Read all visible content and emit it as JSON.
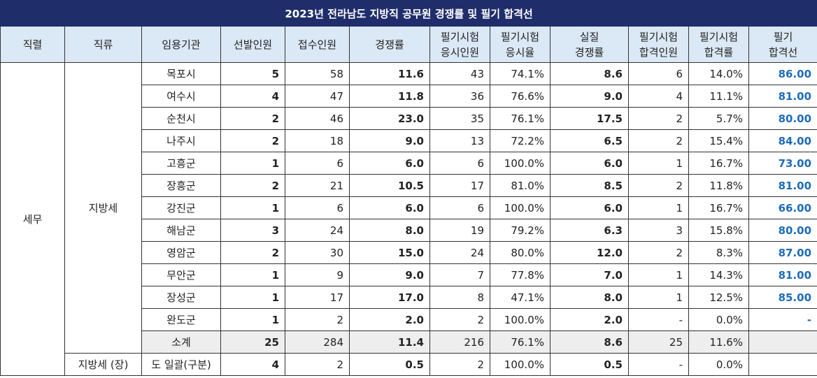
{
  "title": "2023년 전라남도 지방직 공무원 경쟁률 및 필기 합격선",
  "headers": {
    "position": "직렬",
    "category": "직류",
    "agency": "임용기관",
    "quota": "선발인원",
    "applicants": "접수인원",
    "ratio": "경쟁률",
    "exam_takers_l1": "필기시험",
    "exam_takers_l2": "응시인원",
    "exam_rate_l1": "필기시험",
    "exam_rate_l2": "응시율",
    "real_ratio_l1": "실질",
    "real_ratio_l2": "경쟁률",
    "passed_l1": "필기시험",
    "passed_l2": "합격인원",
    "pass_rate_l1": "필기시험",
    "pass_rate_l2": "합격률",
    "cutoff_l1": "필기",
    "cutoff_l2": "합격선"
  },
  "group": {
    "position": "세무",
    "category": "지방세",
    "category2": "지방세 (장)"
  },
  "rows": [
    {
      "agency": "목포시",
      "quota": "5",
      "applicants": "58",
      "ratio": "11.6",
      "takers": "43",
      "exam_rate": "74.1%",
      "real_ratio": "8.6",
      "passed": "6",
      "pass_rate": "14.0%",
      "cutoff": "86.00"
    },
    {
      "agency": "여수시",
      "quota": "4",
      "applicants": "47",
      "ratio": "11.8",
      "takers": "36",
      "exam_rate": "76.6%",
      "real_ratio": "9.0",
      "passed": "4",
      "pass_rate": "11.1%",
      "cutoff": "81.00"
    },
    {
      "agency": "순천시",
      "quota": "2",
      "applicants": "46",
      "ratio": "23.0",
      "takers": "35",
      "exam_rate": "76.1%",
      "real_ratio": "17.5",
      "passed": "2",
      "pass_rate": "5.7%",
      "cutoff": "80.00"
    },
    {
      "agency": "나주시",
      "quota": "2",
      "applicants": "18",
      "ratio": "9.0",
      "takers": "13",
      "exam_rate": "72.2%",
      "real_ratio": "6.5",
      "passed": "2",
      "pass_rate": "15.4%",
      "cutoff": "84.00"
    },
    {
      "agency": "고흥군",
      "quota": "1",
      "applicants": "6",
      "ratio": "6.0",
      "takers": "6",
      "exam_rate": "100.0%",
      "real_ratio": "6.0",
      "passed": "1",
      "pass_rate": "16.7%",
      "cutoff": "73.00"
    },
    {
      "agency": "장흥군",
      "quota": "2",
      "applicants": "21",
      "ratio": "10.5",
      "takers": "17",
      "exam_rate": "81.0%",
      "real_ratio": "8.5",
      "passed": "2",
      "pass_rate": "11.8%",
      "cutoff": "81.00"
    },
    {
      "agency": "강진군",
      "quota": "1",
      "applicants": "6",
      "ratio": "6.0",
      "takers": "6",
      "exam_rate": "100.0%",
      "real_ratio": "6.0",
      "passed": "1",
      "pass_rate": "16.7%",
      "cutoff": "66.00"
    },
    {
      "agency": "해남군",
      "quota": "3",
      "applicants": "24",
      "ratio": "8.0",
      "takers": "19",
      "exam_rate": "79.2%",
      "real_ratio": "6.3",
      "passed": "3",
      "pass_rate": "15.8%",
      "cutoff": "80.00"
    },
    {
      "agency": "영암군",
      "quota": "2",
      "applicants": "30",
      "ratio": "15.0",
      "takers": "24",
      "exam_rate": "80.0%",
      "real_ratio": "12.0",
      "passed": "2",
      "pass_rate": "8.3%",
      "cutoff": "87.00"
    },
    {
      "agency": "무안군",
      "quota": "1",
      "applicants": "9",
      "ratio": "9.0",
      "takers": "7",
      "exam_rate": "77.8%",
      "real_ratio": "7.0",
      "passed": "1",
      "pass_rate": "14.3%",
      "cutoff": "81.00"
    },
    {
      "agency": "장성군",
      "quota": "1",
      "applicants": "17",
      "ratio": "17.0",
      "takers": "8",
      "exam_rate": "47.1%",
      "real_ratio": "8.0",
      "passed": "1",
      "pass_rate": "12.5%",
      "cutoff": "85.00"
    },
    {
      "agency": "완도군",
      "quota": "1",
      "applicants": "2",
      "ratio": "2.0",
      "takers": "2",
      "exam_rate": "100.0%",
      "real_ratio": "2.0",
      "passed": "-",
      "pass_rate": "0.0%",
      "cutoff": "-"
    }
  ],
  "subtotal": {
    "agency": "소계",
    "quota": "25",
    "applicants": "284",
    "ratio": "11.4",
    "takers": "216",
    "exam_rate": "76.1%",
    "real_ratio": "8.6",
    "passed": "25",
    "pass_rate": "11.6%",
    "cutoff": ""
  },
  "last_row": {
    "agency": "도 일괄(구분)",
    "quota": "4",
    "applicants": "2",
    "ratio": "0.5",
    "takers": "2",
    "exam_rate": "100.0%",
    "real_ratio": "0.5",
    "passed": "-",
    "pass_rate": "0.0%",
    "cutoff": ""
  },
  "colors": {
    "title_bg": "#1f2d6b",
    "header_bg": "#dbe8f5",
    "cutoff_text": "#1e6bb8",
    "subtotal_bg": "#eeeeee"
  }
}
